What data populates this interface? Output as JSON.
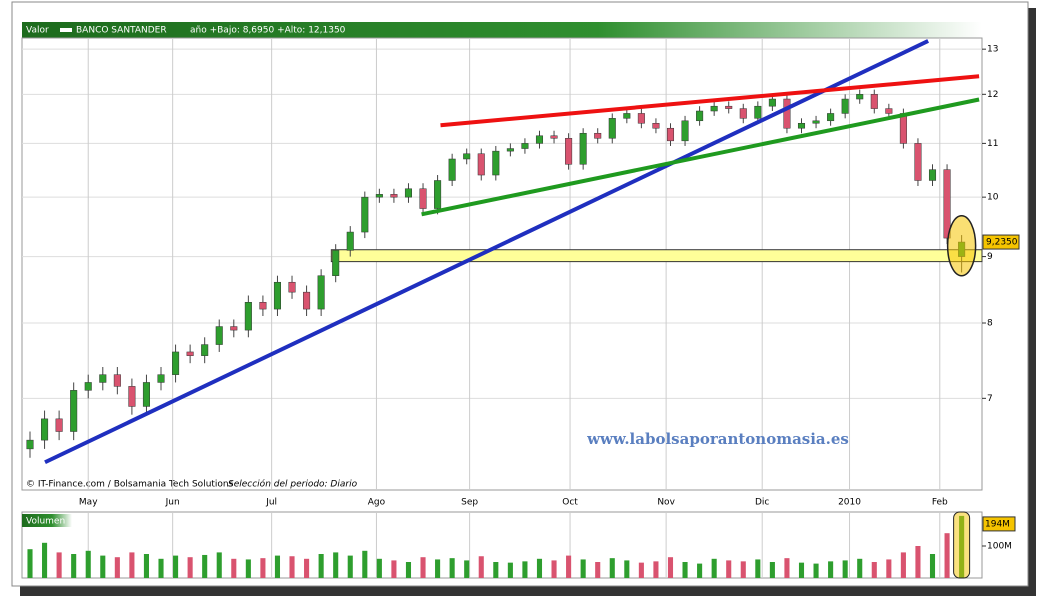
{
  "chart_data": {
    "type": "candlestick",
    "header_label": "Valor",
    "title": "BANCO SANTANDER",
    "subtitle": "año +Bajo: 8,6950 +Alto: 12,1350",
    "source": "© IT-Finance.com / Bolsamania Tech Solutions",
    "period": "Selección del periodo: Diario",
    "watermark": "www.labolsaporantonomasia.es",
    "log_y": true,
    "grid": true,
    "up_color": "#2e9e2e",
    "down_color": "#d9536f",
    "xlim": [
      -0.55,
      65.4
    ],
    "ylim": [
      5.95,
      13.26
    ],
    "yticks": [
      7,
      8,
      9,
      10,
      11,
      12,
      13
    ],
    "xticks": [
      {
        "value": 4.0,
        "label": "May"
      },
      {
        "value": 9.8,
        "label": "Jun"
      },
      {
        "value": 16.6,
        "label": "Jul"
      },
      {
        "value": 23.8,
        "label": "Ago"
      },
      {
        "value": 30.2,
        "label": "Sep"
      },
      {
        "value": 37.1,
        "label": "Oct"
      },
      {
        "value": 43.7,
        "label": "Nov"
      },
      {
        "value": 50.3,
        "label": "Dic"
      },
      {
        "value": 56.3,
        "label": "2010"
      },
      {
        "value": 62.5,
        "label": "Feb"
      }
    ],
    "open": [
      6.4,
      6.5,
      6.75,
      6.6,
      7.1,
      7.2,
      7.3,
      7.15,
      6.9,
      7.2,
      7.3,
      7.6,
      7.55,
      7.7,
      7.95,
      7.9,
      8.3,
      8.2,
      8.6,
      8.45,
      8.2,
      8.7,
      9.1,
      9.4,
      10.0,
      10.05,
      10.0,
      10.15,
      9.8,
      10.3,
      10.7,
      10.8,
      10.4,
      10.85,
      10.9,
      11.0,
      11.15,
      11.1,
      10.6,
      11.2,
      11.1,
      11.5,
      11.6,
      11.4,
      11.3,
      11.05,
      11.45,
      11.65,
      11.75,
      11.7,
      11.5,
      11.75,
      11.9,
      11.3,
      11.4,
      11.45,
      11.6,
      11.9,
      12.0,
      11.7,
      11.6,
      11.0,
      10.3,
      10.5,
      9.0
    ],
    "high": [
      6.6,
      6.85,
      6.85,
      7.2,
      7.3,
      7.4,
      7.4,
      7.25,
      7.3,
      7.4,
      7.7,
      7.7,
      7.8,
      8.05,
      8.05,
      8.4,
      8.4,
      8.7,
      8.7,
      8.55,
      8.8,
      9.2,
      9.5,
      10.1,
      10.15,
      10.15,
      10.25,
      10.25,
      10.4,
      10.8,
      10.9,
      10.9,
      10.95,
      11.0,
      11.1,
      11.25,
      11.25,
      11.2,
      11.3,
      11.3,
      11.6,
      11.7,
      11.7,
      11.5,
      11.4,
      11.55,
      11.75,
      11.85,
      11.85,
      11.8,
      11.85,
      12.0,
      12.0,
      11.5,
      11.55,
      11.7,
      12.0,
      12.1,
      12.1,
      11.8,
      11.7,
      11.1,
      10.6,
      10.6,
      9.35
    ],
    "low": [
      6.3,
      6.4,
      6.5,
      6.5,
      7.0,
      7.1,
      7.05,
      6.8,
      6.8,
      7.1,
      7.2,
      7.45,
      7.45,
      7.6,
      7.8,
      7.8,
      8.1,
      8.1,
      8.35,
      8.1,
      8.1,
      8.6,
      9.0,
      9.3,
      9.9,
      9.9,
      9.9,
      9.7,
      9.7,
      10.2,
      10.6,
      10.3,
      10.3,
      10.75,
      10.8,
      10.9,
      11.0,
      10.5,
      10.5,
      11.0,
      11.0,
      11.4,
      11.3,
      11.2,
      10.95,
      10.95,
      11.35,
      11.55,
      11.6,
      11.4,
      11.4,
      11.65,
      11.2,
      11.2,
      11.3,
      11.35,
      11.5,
      11.8,
      11.6,
      11.5,
      10.9,
      10.2,
      10.2,
      9.2,
      8.75
    ],
    "close": [
      6.5,
      6.75,
      6.6,
      7.1,
      7.2,
      7.3,
      7.15,
      6.9,
      7.2,
      7.3,
      7.6,
      7.55,
      7.7,
      7.95,
      7.9,
      8.3,
      8.2,
      8.6,
      8.45,
      8.2,
      8.7,
      9.1,
      9.4,
      10.0,
      10.05,
      10.0,
      10.15,
      9.8,
      10.3,
      10.7,
      10.8,
      10.4,
      10.85,
      10.9,
      11.0,
      11.15,
      11.1,
      10.6,
      11.2,
      11.1,
      11.5,
      11.6,
      11.4,
      11.3,
      11.05,
      11.45,
      11.65,
      11.75,
      11.7,
      11.5,
      11.75,
      11.9,
      11.3,
      11.4,
      11.45,
      11.6,
      11.9,
      12.0,
      11.7,
      11.6,
      11.0,
      10.3,
      10.5,
      9.3,
      9.235
    ],
    "last_price": {
      "value": 9.235,
      "label": "9,2350"
    },
    "lines": [
      {
        "color": "#1f2fbf",
        "from": [
          1.03,
          6.25
        ],
        "to": [
          61.7,
          13.19
        ]
      },
      {
        "color": "#ee1111",
        "from": [
          28.2,
          11.36
        ],
        "to": [
          65.2,
          12.39
        ]
      },
      {
        "color": "#1f9a1f",
        "from": [
          26.9,
          9.7
        ],
        "to": [
          65.2,
          11.89
        ]
      }
    ],
    "support_band": {
      "from": 20.7,
      "low": 8.92,
      "high": 9.11,
      "color": "#ffff99"
    },
    "volume": {
      "title": "Volumen",
      "ylim": [
        0,
        200
      ],
      "yticks": [
        {
          "value": 100,
          "label": "100M"
        }
      ],
      "values": [
        90,
        110,
        80,
        75,
        85,
        70,
        65,
        80,
        75,
        60,
        70,
        65,
        72,
        80,
        60,
        58,
        62,
        70,
        68,
        60,
        75,
        80,
        70,
        85,
        60,
        55,
        50,
        65,
        58,
        62,
        55,
        68,
        50,
        48,
        52,
        60,
        55,
        70,
        58,
        50,
        62,
        55,
        48,
        52,
        65,
        50,
        45,
        60,
        55,
        52,
        58,
        50,
        62,
        48,
        45,
        52,
        55,
        60,
        50,
        58,
        80,
        100,
        75,
        140,
        194
      ],
      "last_label": {
        "value": 194,
        "label": "194M"
      }
    }
  }
}
